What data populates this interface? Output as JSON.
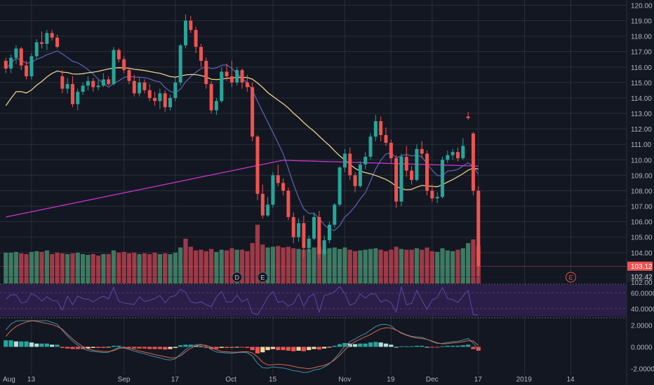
{
  "colors": {
    "background": "#131722",
    "grid": "#2a2e39",
    "up": "#26a69a",
    "down": "#ef5350",
    "vol_up": "#3d7a63",
    "vol_down": "#9e3a48",
    "ma_fast": "#5b5fa8",
    "ma_mid": "#e8d08a",
    "ma_slow": "#c837c8",
    "rsi_band": "#2b1f4a",
    "rsi_line": "#5a4a9a",
    "macd_line": "#3d8fa8",
    "signal_line": "#d2694a",
    "hist_pos_strong": "#26a69a",
    "hist_pos_weak": "#b2dfdb",
    "hist_neg_strong": "#ef5350",
    "hist_neg_weak": "#f5d6a0",
    "axis_text": "#b2b5be",
    "last_price_bg": "#ef5350",
    "prev_price_bg": "#1e222d"
  },
  "chart_data": {
    "type": "candlestick",
    "price_axis": {
      "ticks": [
        "120.00",
        "119.00",
        "118.00",
        "117.00",
        "116.00",
        "115.00",
        "114.00",
        "113.00",
        "112.00",
        "111.00",
        "110.00",
        "109.00",
        "108.00",
        "107.00",
        "106.00",
        "105.00",
        "104.00"
      ],
      "tick_values": [
        120,
        119,
        118,
        117,
        116,
        115,
        114,
        113,
        112,
        111,
        110,
        109,
        108,
        107,
        106,
        105,
        104
      ],
      "ylim": [
        102,
        120.2
      ],
      "grid": true
    },
    "time_axis": {
      "labels": [
        "Aug",
        "13",
        "Sep",
        "17",
        "Oct",
        "15",
        "Nov",
        "19",
        "Dec",
        "17",
        "2019",
        "14"
      ],
      "label_bar_index": [
        -2,
        5,
        23,
        33,
        44,
        52,
        66,
        75,
        83,
        92,
        101,
        110
      ]
    },
    "price_labels": {
      "last": "103.12",
      "last_value": 103.12,
      "prev": "102.42",
      "prev_value": 102.42,
      "bottom": "102.00",
      "bottom_value": 102.0
    },
    "event_markers": [
      {
        "label": "D",
        "bar_index": 45
      },
      {
        "label": "E",
        "bar_index": 50
      },
      {
        "label": "E",
        "bar_index": 110
      }
    ],
    "candles": [
      [
        116.4,
        116.6,
        115.6,
        115.9
      ],
      [
        115.9,
        116.8,
        115.6,
        116.6
      ],
      [
        116.6,
        117.4,
        116.2,
        117.2
      ],
      [
        117.2,
        117.3,
        115.8,
        116.1
      ],
      [
        116.1,
        116.4,
        115.2,
        115.4
      ],
      [
        115.4,
        116.9,
        115.2,
        116.7
      ],
      [
        116.7,
        117.8,
        116.5,
        117.6
      ],
      [
        117.6,
        118.3,
        117.2,
        117.5
      ],
      [
        117.5,
        118.4,
        117.1,
        118.2
      ],
      [
        118.2,
        118.4,
        117.7,
        117.9
      ],
      [
        117.9,
        118.1,
        117.2,
        117.3
      ],
      [
        115.4,
        115.8,
        114.3,
        114.6
      ],
      [
        114.6,
        115.3,
        114.3,
        114.9
      ],
      [
        114.9,
        115.4,
        113.4,
        113.6
      ],
      [
        113.6,
        114.6,
        113.2,
        114.4
      ],
      [
        114.4,
        115.0,
        114.2,
        114.8
      ],
      [
        114.8,
        115.4,
        114.5,
        115.1
      ],
      [
        115.1,
        115.3,
        114.4,
        114.7
      ],
      [
        114.7,
        115.2,
        114.5,
        114.8
      ],
      [
        114.8,
        115.6,
        114.7,
        115.2
      ],
      [
        115.2,
        115.4,
        114.8,
        114.9
      ],
      [
        114.9,
        117.3,
        114.8,
        117.1
      ],
      [
        117.1,
        117.2,
        116.3,
        116.5
      ],
      [
        116.5,
        116.7,
        115.6,
        115.8
      ],
      [
        115.8,
        116.0,
        114.9,
        115.1
      ],
      [
        115.1,
        115.5,
        114.1,
        114.3
      ],
      [
        114.3,
        115.3,
        114.1,
        115.0
      ],
      [
        115.0,
        115.2,
        114.3,
        114.5
      ],
      [
        114.5,
        114.9,
        113.8,
        114.0
      ],
      [
        114.0,
        114.4,
        113.5,
        113.8
      ],
      [
        113.8,
        114.6,
        113.3,
        114.3
      ],
      [
        114.3,
        114.5,
        113.1,
        113.4
      ],
      [
        113.4,
        114.2,
        113.2,
        114.0
      ],
      [
        114.0,
        115.3,
        113.8,
        115.0
      ],
      [
        115.0,
        117.5,
        114.8,
        117.4
      ],
      [
        117.4,
        119.4,
        117.2,
        119.0
      ],
      [
        119.0,
        119.3,
        118.2,
        118.4
      ],
      [
        118.4,
        118.6,
        116.9,
        117.3
      ],
      [
        117.3,
        117.5,
        116.0,
        116.4
      ],
      [
        116.4,
        116.6,
        114.6,
        114.9
      ],
      [
        114.9,
        115.1,
        113.0,
        113.2
      ],
      [
        113.2,
        114.0,
        112.9,
        113.8
      ],
      [
        113.8,
        116.0,
        113.7,
        115.7
      ],
      [
        115.7,
        116.2,
        115.1,
        115.4
      ],
      [
        115.4,
        116.4,
        114.7,
        115.0
      ],
      [
        115.0,
        116.0,
        114.8,
        115.8
      ],
      [
        115.8,
        115.9,
        114.6,
        115.0
      ],
      [
        115.0,
        115.5,
        114.4,
        114.7
      ],
      [
        114.7,
        115.0,
        111.2,
        111.5
      ],
      [
        111.5,
        111.6,
        107.4,
        107.8
      ],
      [
        107.8,
        108.4,
        106.2,
        106.4
      ],
      [
        106.4,
        107.6,
        106.3,
        107.1
      ],
      [
        107.1,
        109.2,
        106.9,
        109.0
      ],
      [
        109.0,
        109.7,
        108.3,
        108.5
      ],
      [
        108.5,
        108.8,
        107.7,
        108.0
      ],
      [
        108.0,
        108.2,
        106.1,
        106.3
      ],
      [
        106.3,
        106.6,
        104.6,
        105.0
      ],
      [
        105.0,
        106.2,
        104.7,
        105.9
      ],
      [
        105.9,
        106.4,
        103.7,
        104.3
      ],
      [
        104.3,
        105.1,
        104.0,
        104.9
      ],
      [
        104.9,
        106.6,
        104.8,
        106.3
      ],
      [
        106.3,
        106.7,
        103.6,
        103.9
      ],
      [
        103.9,
        105.1,
        103.8,
        104.8
      ],
      [
        104.8,
        106.0,
        104.6,
        105.8
      ],
      [
        105.8,
        107.2,
        105.6,
        107.1
      ],
      [
        107.1,
        109.6,
        107.0,
        109.5
      ],
      [
        109.5,
        110.7,
        109.2,
        110.4
      ],
      [
        110.4,
        110.8,
        108.7,
        109.0
      ],
      [
        109.0,
        109.2,
        107.9,
        108.3
      ],
      [
        108.3,
        109.9,
        108.2,
        109.7
      ],
      [
        109.7,
        110.5,
        109.4,
        110.2
      ],
      [
        110.2,
        111.7,
        110.0,
        111.5
      ],
      [
        111.5,
        112.9,
        111.2,
        112.5
      ],
      [
        112.5,
        112.8,
        111.2,
        111.6
      ],
      [
        111.6,
        112.1,
        110.9,
        111.1
      ],
      [
        111.1,
        111.3,
        109.8,
        110.1
      ],
      [
        110.1,
        110.3,
        106.9,
        107.3
      ],
      [
        107.3,
        110.4,
        107.0,
        110.2
      ],
      [
        110.2,
        110.9,
        108.9,
        109.3
      ],
      [
        109.3,
        109.6,
        108.4,
        108.7
      ],
      [
        108.7,
        111.0,
        108.6,
        110.7
      ],
      [
        110.7,
        111.2,
        110.1,
        110.4
      ],
      [
        110.4,
        110.6,
        107.7,
        108.0
      ],
      [
        108.0,
        108.4,
        107.3,
        107.5
      ],
      [
        107.5,
        107.9,
        107.2,
        107.6
      ],
      [
        107.6,
        110.2,
        107.5,
        110.0
      ],
      [
        110.0,
        110.6,
        109.8,
        110.3
      ],
      [
        110.3,
        110.7,
        110.0,
        110.5
      ],
      [
        110.5,
        110.8,
        109.9,
        110.1
      ],
      [
        110.1,
        111.4,
        110.0,
        110.9
      ],
      [
        112.8,
        113.1,
        112.6,
        112.7
      ],
      [
        111.7,
        111.8,
        107.7,
        108.0
      ],
      [
        108.0,
        108.3,
        102.5,
        103.12
      ]
    ],
    "volume": [
      [
        4.2,
        1
      ],
      [
        4.2,
        1
      ],
      [
        4.3,
        1
      ],
      [
        4.1,
        0
      ],
      [
        4.0,
        0
      ],
      [
        4.3,
        1
      ],
      [
        4.4,
        1
      ],
      [
        4.3,
        0
      ],
      [
        4.5,
        1
      ],
      [
        4.0,
        0
      ],
      [
        4.2,
        0
      ],
      [
        4.1,
        0
      ],
      [
        4.0,
        1
      ],
      [
        4.1,
        0
      ],
      [
        4.2,
        1
      ],
      [
        4.0,
        1
      ],
      [
        3.9,
        1
      ],
      [
        4.0,
        0
      ],
      [
        3.8,
        0
      ],
      [
        4.0,
        1
      ],
      [
        4.0,
        0
      ],
      [
        4.5,
        1
      ],
      [
        4.2,
        0
      ],
      [
        4.3,
        0
      ],
      [
        4.1,
        0
      ],
      [
        4.2,
        0
      ],
      [
        4.0,
        1
      ],
      [
        4.1,
        0
      ],
      [
        4.0,
        0
      ],
      [
        4.2,
        0
      ],
      [
        4.0,
        1
      ],
      [
        4.1,
        0
      ],
      [
        4.0,
        1
      ],
      [
        4.2,
        1
      ],
      [
        4.9,
        1
      ],
      [
        6.1,
        0
      ],
      [
        5.0,
        0
      ],
      [
        4.5,
        0
      ],
      [
        4.6,
        0
      ],
      [
        4.4,
        0
      ],
      [
        4.7,
        0
      ],
      [
        4.3,
        1
      ],
      [
        4.6,
        1
      ],
      [
        4.5,
        0
      ],
      [
        4.8,
        0
      ],
      [
        4.6,
        1
      ],
      [
        4.6,
        0
      ],
      [
        4.4,
        0
      ],
      [
        5.5,
        0
      ],
      [
        8.0,
        0
      ],
      [
        5.3,
        0
      ],
      [
        4.9,
        1
      ],
      [
        5.0,
        1
      ],
      [
        5.1,
        0
      ],
      [
        4.9,
        0
      ],
      [
        5.0,
        0
      ],
      [
        4.8,
        0
      ],
      [
        4.7,
        1
      ],
      [
        4.6,
        0
      ],
      [
        4.7,
        1
      ],
      [
        4.9,
        1
      ],
      [
        5.0,
        0
      ],
      [
        4.6,
        1
      ],
      [
        4.8,
        1
      ],
      [
        4.9,
        1
      ],
      [
        4.7,
        1
      ],
      [
        4.9,
        1
      ],
      [
        4.6,
        0
      ],
      [
        4.4,
        0
      ],
      [
        4.5,
        1
      ],
      [
        4.6,
        1
      ],
      [
        4.7,
        1
      ],
      [
        4.8,
        1
      ],
      [
        4.6,
        0
      ],
      [
        4.4,
        0
      ],
      [
        4.6,
        0
      ],
      [
        5.0,
        0
      ],
      [
        4.7,
        1
      ],
      [
        4.6,
        0
      ],
      [
        4.6,
        0
      ],
      [
        4.8,
        1
      ],
      [
        4.6,
        0
      ],
      [
        4.9,
        0
      ],
      [
        4.4,
        0
      ],
      [
        4.3,
        1
      ],
      [
        4.8,
        1
      ],
      [
        4.5,
        1
      ],
      [
        4.4,
        1
      ],
      [
        4.6,
        0
      ],
      [
        4.8,
        1
      ],
      [
        5.5,
        1
      ],
      [
        6.0,
        0
      ],
      [
        5.2,
        0
      ]
    ],
    "rsi_axis": {
      "ticks": [
        "60.0000",
        "40.0000"
      ],
      "tick_values": [
        60,
        40
      ],
      "ylim": [
        30,
        70
      ]
    },
    "macd_axis": {
      "ticks": [
        "2.0000",
        "0.0000",
        "-2.0000"
      ],
      "tick_values": [
        2,
        0,
        -2
      ],
      "ylim": [
        -2.6,
        2.6
      ]
    },
    "macd_histogram": [
      0.6,
      0.6,
      0.5,
      0.5,
      0.5,
      0.4,
      0.3,
      0.3,
      0.3,
      0.2,
      0.2,
      -0.1,
      -0.15,
      -0.2,
      -0.2,
      -0.2,
      -0.15,
      -0.1,
      -0.1,
      -0.1,
      -0.05,
      0.1,
      0.1,
      -0.05,
      -0.1,
      -0.15,
      -0.15,
      -0.15,
      -0.2,
      -0.2,
      -0.2,
      -0.25,
      -0.2,
      -0.1,
      0.15,
      0.2,
      0.2,
      0.1,
      0.05,
      -0.1,
      -0.2,
      -0.2,
      -0.1,
      -0.1,
      -0.1,
      -0.05,
      -0.05,
      -0.1,
      -0.3,
      -0.6,
      -0.5,
      -0.3,
      -0.2,
      -0.3,
      -0.3,
      -0.35,
      -0.4,
      -0.35,
      -0.4,
      -0.3,
      -0.2,
      -0.25,
      -0.15,
      -0.05,
      0.1,
      0.25,
      0.35,
      0.3,
      0.25,
      0.3,
      0.3,
      0.4,
      0.45,
      0.4,
      0.3,
      0.2,
      0.0,
      0.05,
      0.05,
      0.05,
      0.1,
      0.1,
      0.0,
      -0.05,
      -0.05,
      0.05,
      0.1,
      0.1,
      0.1,
      0.15,
      0.2,
      -0.2,
      -0.35
    ]
  }
}
